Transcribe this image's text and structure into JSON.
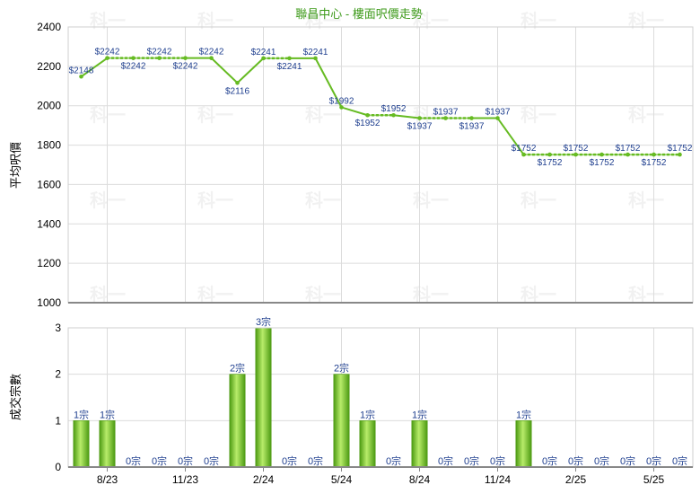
{
  "chart_data": [
    {
      "type": "line",
      "title": "聯昌中心 - 樓面呎價走勢",
      "ylabel": "平均呎價",
      "ylim": [
        1000,
        2400
      ],
      "yticks": [
        "1000",
        "1200",
        "1400",
        "1600",
        "1800",
        "2000",
        "2200",
        "2400"
      ],
      "grid": true,
      "line_color": "#66bb22",
      "values": [
        2148,
        2242,
        2242,
        2242,
        2242,
        2242,
        2116,
        2241,
        2241,
        2241,
        1992,
        1952,
        1952,
        1937,
        1937,
        1937,
        1937,
        1752,
        1752,
        1752,
        1752,
        1752,
        1752,
        1752
      ],
      "labels": [
        "$2148",
        "$2242",
        "$2242",
        "$2242",
        "$2242",
        "$2242",
        "$2116",
        "$2241",
        "$2241",
        "$2241",
        "$1992",
        "$1952",
        "$1952",
        "$1937",
        "$1937",
        "$1937",
        "$1937",
        "$1752",
        "$1752",
        "$1752",
        "$1752",
        "$1752",
        "$1752",
        "$1752"
      ],
      "dotted_from_prev": [
        false,
        false,
        true,
        true,
        true,
        false,
        false,
        false,
        true,
        false,
        false,
        false,
        true,
        false,
        true,
        true,
        false,
        false,
        true,
        true,
        true,
        true,
        true,
        true
      ]
    },
    {
      "type": "bar",
      "ylabel": "成交宗數",
      "ylim": [
        0,
        3
      ],
      "yticks": [
        "0",
        "1",
        "2",
        "3"
      ],
      "grid": true,
      "bar_color": "#66bb22",
      "categories": [
        "8/23",
        "11/23",
        "2/24",
        "5/24",
        "8/24",
        "11/24",
        "2/25",
        "5/25"
      ],
      "values": [
        1,
        1,
        0,
        0,
        0,
        0,
        2,
        3,
        0,
        0,
        2,
        1,
        0,
        1,
        0,
        0,
        0,
        1,
        0,
        0,
        0,
        0,
        0,
        0
      ],
      "labels": [
        "1宗",
        "1宗",
        "0宗",
        "0宗",
        "0宗",
        "0宗",
        "2宗",
        "3宗",
        "0宗",
        "0宗",
        "2宗",
        "1宗",
        "0宗",
        "1宗",
        "0宗",
        "0宗",
        "0宗",
        "1宗",
        "0宗",
        "0宗",
        "0宗",
        "0宗",
        "0宗",
        "0宗"
      ]
    }
  ],
  "watermark": "科一"
}
